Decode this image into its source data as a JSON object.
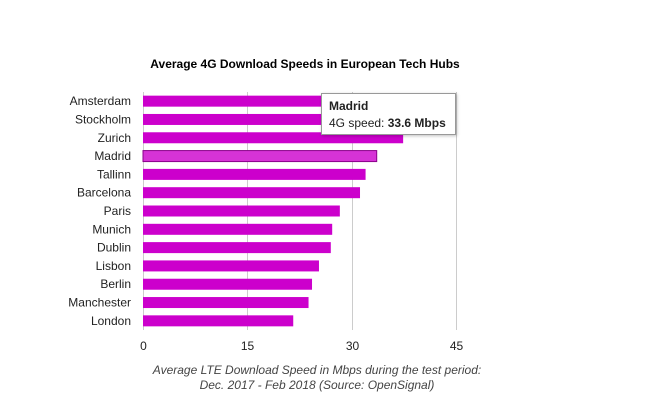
{
  "chart_data": {
    "type": "bar",
    "orientation": "horizontal",
    "title": "Average 4G Download Speeds in European Tech Hubs",
    "categories": [
      "Amsterdam",
      "Stockholm",
      "Zurich",
      "Madrid",
      "Tallinn",
      "Barcelona",
      "Paris",
      "Munich",
      "Dublin",
      "Lisbon",
      "Berlin",
      "Manchester",
      "London"
    ],
    "values": [
      38.5,
      38,
      37.4,
      33.6,
      32,
      31.2,
      28.3,
      27.2,
      27,
      25.3,
      24.3,
      23.8,
      21.6
    ],
    "xlabel_line1": "Average LTE Download Speed in Mbps during the test period:",
    "xlabel_line2": "Dec. 2017 - Feb 2018 (Source: OpenSignal)",
    "ylabel": "",
    "xlim": [
      0,
      45
    ],
    "xticks": [
      0,
      15,
      30,
      45
    ],
    "grid": true,
    "color": "#cc00cc",
    "highlighted": "Madrid"
  },
  "tooltip": {
    "title": "Madrid",
    "label": "4G speed: ",
    "value": "33.6 Mbps"
  }
}
